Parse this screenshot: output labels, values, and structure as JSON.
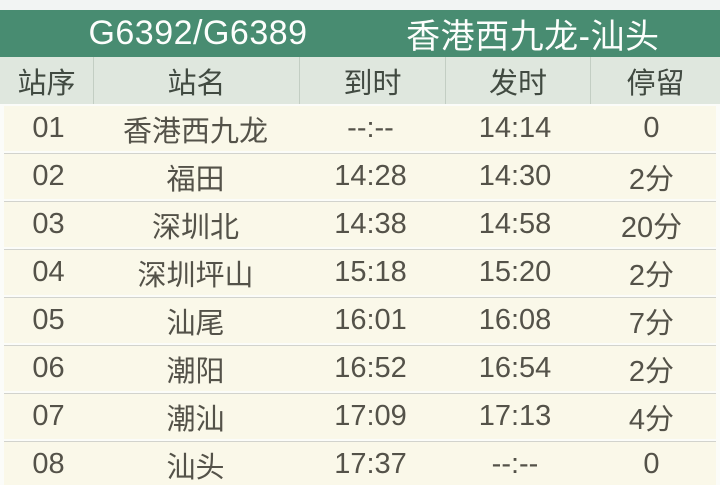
{
  "header": {
    "train_number": "G6392/G6389",
    "route": "香港西九龙-汕头"
  },
  "colors": {
    "title_bar_bg": "#488c71",
    "title_bar_text": "#fcfefc",
    "column_header_bg": "#dfe7de",
    "row_bg": "#faf8e9",
    "cell_text": "#545249"
  },
  "table": {
    "columns": [
      {
        "key": "seq",
        "label": "站序"
      },
      {
        "key": "name",
        "label": "站名"
      },
      {
        "key": "arrive",
        "label": "到时"
      },
      {
        "key": "depart",
        "label": "发时"
      },
      {
        "key": "stop",
        "label": "停留"
      }
    ],
    "rows": [
      {
        "seq": "01",
        "name": "香港西九龙",
        "arrive": "--:--",
        "depart": "14:14",
        "stop": "0"
      },
      {
        "seq": "02",
        "name": "福田",
        "arrive": "14:28",
        "depart": "14:30",
        "stop": "2分"
      },
      {
        "seq": "03",
        "name": "深圳北",
        "arrive": "14:38",
        "depart": "14:58",
        "stop": "20分"
      },
      {
        "seq": "04",
        "name": "深圳坪山",
        "arrive": "15:18",
        "depart": "15:20",
        "stop": "2分"
      },
      {
        "seq": "05",
        "name": "汕尾",
        "arrive": "16:01",
        "depart": "16:08",
        "stop": "7分"
      },
      {
        "seq": "06",
        "name": "潮阳",
        "arrive": "16:52",
        "depart": "16:54",
        "stop": "2分"
      },
      {
        "seq": "07",
        "name": "潮汕",
        "arrive": "17:09",
        "depart": "17:13",
        "stop": "4分"
      },
      {
        "seq": "08",
        "name": "汕头",
        "arrive": "17:37",
        "depart": "--:--",
        "stop": "0"
      }
    ]
  }
}
